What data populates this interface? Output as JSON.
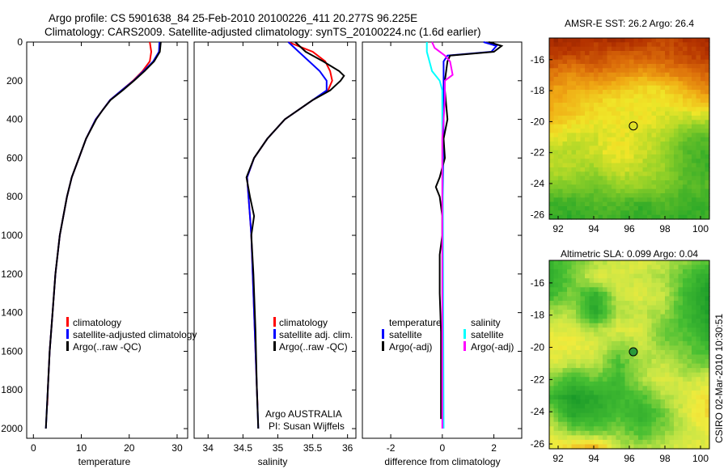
{
  "title": {
    "line1": "Argo profile: CS 5901638_84 25-Feb-2010 20100226_411 20.277S 96.225E",
    "line2": "Climatology: CARS2009. Satellite-adjusted climatology: synTS_20100224.nc (1.6d earlier)"
  },
  "footer_stamp": "CSIRO 02-Mar-2010 10:30:51",
  "colors": {
    "climatology": "#ff0000",
    "satellite": "#0000ff",
    "argo": "#000000",
    "sal_satellite": "#00ffff",
    "sal_argo": "#ff00ff"
  },
  "chart_data": [
    {
      "type": "line",
      "id": "temperature",
      "xlabel": "temperature",
      "ylabel": "",
      "xlim": [
        -1.4,
        32.2
      ],
      "ylim": [
        2050,
        0
      ],
      "xticks": [
        "0",
        "10",
        "20",
        "30"
      ],
      "xtick_values": [
        0,
        10,
        20,
        30
      ],
      "yticks": [
        "0",
        "200",
        "400",
        "600",
        "800",
        "1000",
        "1200",
        "1400",
        "1600",
        "1800",
        "2000"
      ],
      "ytick_values": [
        0,
        200,
        400,
        600,
        800,
        1000,
        1200,
        1400,
        1600,
        1800,
        2000
      ],
      "legend": [
        "climatology",
        "satellite-adjusted climatology",
        "Argo(..raw -QC)"
      ],
      "series": [
        {
          "name": "climatology",
          "color": "#ff0000",
          "depth": [
            0,
            50,
            100,
            150,
            200,
            250,
            300,
            350,
            400,
            500,
            600,
            700,
            800,
            1000,
            1200,
            1400,
            1600,
            1800,
            1880
          ],
          "values": [
            24.3,
            24.6,
            24.3,
            22.8,
            20.8,
            18.4,
            16,
            14.5,
            13,
            11,
            9.5,
            8,
            7,
            5.5,
            4.6,
            4,
            3.4,
            3,
            2.9
          ]
        },
        {
          "name": "satellite-adjusted climatology",
          "color": "#0000ff",
          "depth": [
            0,
            50,
            100,
            150,
            200,
            250,
            300,
            350,
            400,
            500,
            600,
            700,
            800,
            1000,
            1200,
            1400,
            1600,
            1800,
            2000
          ],
          "values": [
            26.3,
            26.2,
            25,
            23,
            20.9,
            18.4,
            16,
            14.5,
            13,
            11,
            9.5,
            8,
            7,
            5.5,
            4.6,
            4,
            3.4,
            3,
            2.6
          ]
        },
        {
          "name": "Argo(..raw -QC)",
          "color": "#000000",
          "depth": [
            0,
            50,
            100,
            150,
            200,
            250,
            300,
            350,
            400,
            500,
            600,
            700,
            800,
            1000,
            1200,
            1400,
            1600,
            1800,
            2000
          ],
          "values": [
            26.6,
            26.4,
            25.2,
            23.2,
            21,
            18.6,
            16.1,
            14.5,
            13.1,
            11,
            9.5,
            8,
            7,
            5.5,
            4.6,
            4,
            3.4,
            3,
            2.6
          ]
        }
      ]
    },
    {
      "type": "line",
      "id": "salinity",
      "xlabel": "salinity",
      "xlim": [
        33.8,
        36.12
      ],
      "ylim": [
        2050,
        0
      ],
      "xticks": [
        "34",
        "34.5",
        "35",
        "35.5",
        "36"
      ],
      "xtick_values": [
        34,
        34.5,
        35,
        35.5,
        36
      ],
      "legend": [
        "climatology",
        "satellite adj. clim.",
        "Argo(..raw -QC)"
      ],
      "annotation": [
        "Argo AUSTRALIA",
        "PI: Susan Wijffels"
      ],
      "series": [
        {
          "name": "climatology",
          "color": "#ff0000",
          "depth": [
            0,
            50,
            100,
            150,
            200,
            250,
            300,
            350,
            400,
            500,
            600,
            700,
            800,
            900,
            1000,
            1200,
            1500,
            1800,
            1880
          ],
          "values": [
            35.15,
            35.5,
            35.68,
            35.75,
            35.78,
            35.72,
            35.5,
            35.3,
            35.1,
            34.85,
            34.66,
            34.56,
            34.58,
            34.6,
            34.62,
            34.64,
            34.67,
            34.7,
            34.71
          ]
        },
        {
          "name": "satellite adj. clim.",
          "color": "#0000ff",
          "depth": [
            0,
            50,
            100,
            150,
            200,
            250,
            300,
            350,
            400,
            500,
            600,
            700,
            800,
            900,
            1000,
            1200,
            1500,
            1800,
            2000
          ],
          "values": [
            35.15,
            35.3,
            35.45,
            35.6,
            35.7,
            35.7,
            35.5,
            35.3,
            35.1,
            34.85,
            34.66,
            34.56,
            34.58,
            34.6,
            34.62,
            34.64,
            34.67,
            34.7,
            34.72
          ]
        },
        {
          "name": "Argo(..raw -QC)",
          "color": "#000000",
          "depth": [
            0,
            50,
            100,
            150,
            175,
            200,
            250,
            300,
            350,
            400,
            500,
            600,
            700,
            800,
            900,
            1000,
            1200,
            1500,
            1800,
            2000
          ],
          "values": [
            35.25,
            35.4,
            35.65,
            35.88,
            35.95,
            35.9,
            35.75,
            35.5,
            35.3,
            35.1,
            34.85,
            34.66,
            34.55,
            34.6,
            34.66,
            34.62,
            34.65,
            34.68,
            34.7,
            34.72
          ]
        }
      ]
    },
    {
      "type": "line",
      "id": "difference",
      "xlabel": "difference from climatology",
      "xlim": [
        -3.1,
        3.08
      ],
      "ylim": [
        2050,
        0
      ],
      "xticks": [
        "-2",
        "0",
        "2"
      ],
      "xtick_values": [
        -2,
        0,
        2
      ],
      "legend_temperature": {
        "header": "temperature",
        "items": [
          "satellite",
          "Argo(-adj)"
        ]
      },
      "legend_salinity": {
        "header": "salinity",
        "items": [
          "satellite",
          "Argo(-adj)"
        ]
      },
      "series": [
        {
          "name": "temperature satellite",
          "color": "#0000ff",
          "depth": [
            0,
            20,
            50,
            70,
            100,
            200,
            400,
            800,
            1950
          ],
          "values": [
            1.6,
            2.1,
            1.9,
            0.2,
            0.05,
            0.05,
            0.05,
            0.02,
            0.02
          ]
        },
        {
          "name": "temperature Argo(-adj)",
          "color": "#000000",
          "depth": [
            0,
            20,
            50,
            70,
            100,
            200,
            250,
            400,
            500,
            600,
            700,
            750,
            800,
            900,
            1000,
            1100,
            1300,
            1500,
            1800,
            1950
          ],
          "values": [
            1.8,
            2.3,
            2.0,
            0.3,
            0.2,
            0.1,
            0.1,
            0.2,
            0.05,
            0.1,
            -0.1,
            -0.25,
            -0.1,
            0,
            0,
            -0.1,
            -0.1,
            -0.05,
            -0.05,
            -0.05
          ]
        },
        {
          "name": "salinity satellite",
          "color": "#00ffff",
          "depth": [
            0,
            50,
            100,
            150,
            200,
            250,
            400,
            800,
            2000
          ],
          "values": [
            -0.6,
            -0.6,
            -0.5,
            -0.4,
            -0.1,
            0,
            0,
            0.02,
            0.05
          ]
        },
        {
          "name": "salinity Argo(-adj)",
          "color": "#ff00ff",
          "depth": [
            0,
            30,
            70,
            100,
            170,
            200,
            300,
            500,
            800,
            2000
          ],
          "values": [
            -0.4,
            -0.3,
            0.1,
            0.3,
            0.4,
            0.1,
            0.1,
            0,
            0,
            0
          ]
        }
      ]
    },
    {
      "type": "heatmap",
      "id": "sst_map",
      "title": "AMSR-E SST: 26.2 Argo: 26.4",
      "xlim": [
        91.5,
        100.5
      ],
      "ylim": [
        -26.3,
        -14.6
      ],
      "xticks": [
        "92",
        "94",
        "96",
        "98",
        "100"
      ],
      "xtick_values": [
        92,
        94,
        96,
        98,
        100
      ],
      "yticks": [
        "-16",
        "-18",
        "-20",
        "-22",
        "-24",
        "-26"
      ],
      "ytick_values": [
        -16,
        -18,
        -20,
        -22,
        -24,
        -26
      ],
      "marker": {
        "lon": 96.225,
        "lat": -20.277,
        "filled": false
      },
      "grid_lat": [
        -14.6,
        -16,
        -17,
        -18,
        -19,
        -20,
        -21,
        -22,
        -23,
        -24,
        -25,
        -26.3
      ],
      "grid_levels": [
        [
          0.95,
          0.95,
          0.9,
          0.95,
          0.9,
          0.85,
          0.9,
          0.95
        ],
        [
          0.9,
          0.85,
          0.85,
          0.8,
          0.8,
          0.8,
          0.85,
          0.9
        ],
        [
          0.75,
          0.7,
          0.75,
          0.7,
          0.65,
          0.7,
          0.75,
          0.8
        ],
        [
          0.65,
          0.6,
          0.6,
          0.55,
          0.5,
          0.5,
          0.6,
          0.7
        ],
        [
          0.6,
          0.55,
          0.5,
          0.45,
          0.45,
          0.45,
          0.5,
          0.55
        ],
        [
          0.55,
          0.5,
          0.45,
          0.45,
          0.45,
          0.4,
          0.35,
          0.35
        ],
        [
          0.45,
          0.4,
          0.4,
          0.45,
          0.4,
          0.35,
          0.2,
          0.15
        ],
        [
          0.35,
          0.35,
          0.4,
          0.45,
          0.4,
          0.3,
          0.15,
          0.1
        ],
        [
          0.35,
          0.35,
          0.3,
          0.4,
          0.35,
          0.3,
          0.15,
          0.1
        ],
        [
          0.25,
          0.25,
          0.2,
          0.3,
          0.3,
          0.25,
          0.15,
          0.15
        ],
        [
          0.1,
          0.1,
          0.15,
          0.15,
          0.1,
          0.15,
          0.1,
          0.1
        ],
        [
          0.1,
          0.05,
          0.1,
          0.1,
          0.05,
          0.1,
          0.05,
          0.1
        ]
      ]
    },
    {
      "type": "heatmap",
      "id": "sla_map",
      "title": "Altimetric SLA: 0.099 Argo: 0.04",
      "xlim": [
        91.5,
        100.5
      ],
      "ylim": [
        -26.3,
        -14.6
      ],
      "xticks": [
        "92",
        "94",
        "96",
        "98",
        "100"
      ],
      "xtick_values": [
        92,
        94,
        96,
        98,
        100
      ],
      "yticks": [
        "-16",
        "-18",
        "-20",
        "-22",
        "-24",
        "-26"
      ],
      "ytick_values": [
        -16,
        -18,
        -20,
        -22,
        -24,
        -26
      ],
      "marker": {
        "lon": 96.225,
        "lat": -20.277,
        "filled": true
      },
      "grid_lat": [
        -14.6,
        -16,
        -17,
        -18,
        -19,
        -20,
        -21,
        -22,
        -23,
        -24,
        -25,
        -26.3
      ],
      "grid_levels": [
        [
          0.2,
          0.3,
          0.4,
          0.45,
          0.5,
          0.45,
          0.35,
          0.3
        ],
        [
          0.15,
          0.3,
          0.5,
          0.5,
          0.45,
          0.4,
          0.25,
          0.1
        ],
        [
          0.2,
          0.35,
          0.15,
          0.45,
          0.5,
          0.45,
          0.2,
          0.05
        ],
        [
          0.4,
          0.4,
          0.1,
          0.4,
          0.45,
          0.4,
          0.2,
          0.05
        ],
        [
          0.5,
          0.5,
          0.4,
          0.5,
          0.5,
          0.3,
          0.25,
          0.1
        ],
        [
          0.55,
          0.55,
          0.5,
          0.35,
          0.45,
          0.35,
          0.3,
          0.2
        ],
        [
          0.5,
          0.45,
          0.45,
          0.25,
          0.4,
          0.45,
          0.35,
          0.3
        ],
        [
          0.35,
          0.2,
          0.3,
          0.2,
          0.4,
          0.5,
          0.45,
          0.5
        ],
        [
          0.2,
          0.05,
          0.1,
          0.2,
          0.25,
          0.4,
          0.5,
          0.6
        ],
        [
          0.4,
          0.1,
          0.15,
          0.25,
          0.15,
          0.3,
          0.5,
          0.6
        ],
        [
          0.5,
          0.35,
          0.3,
          0.35,
          0.25,
          0.35,
          0.45,
          0.55
        ],
        [
          0.55,
          0.65,
          0.75,
          0.45,
          0.4,
          0.45,
          0.5,
          0.5
        ]
      ]
    }
  ]
}
